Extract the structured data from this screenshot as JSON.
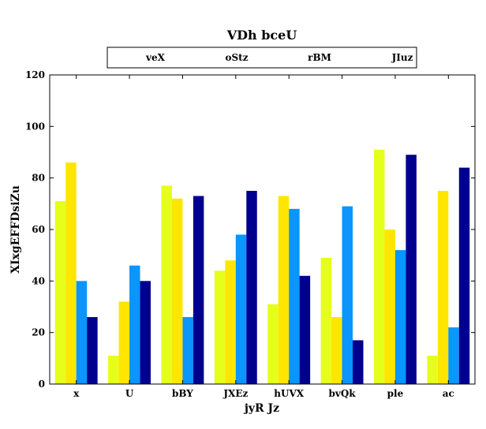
{
  "chart_data": {
    "type": "bar",
    "title": "VDh bceU",
    "xlabel": "jyR Jz",
    "ylabel": "XIxgEFFDsiZu",
    "categories": [
      "x",
      "U",
      "bBY",
      "JXEz",
      "hUVX",
      "bvQk",
      "ple",
      "ac"
    ],
    "ylim": [
      0,
      120
    ],
    "yticks": [
      0,
      20,
      40,
      60,
      80,
      100,
      120
    ],
    "grid": false,
    "legend_position": "top",
    "series": [
      {
        "name": "veX",
        "color": "#e6ff1a",
        "values": [
          71,
          11,
          77,
          44,
          31,
          49,
          91,
          11
        ]
      },
      {
        "name": "oStz",
        "color": "#ffe600",
        "values": [
          86,
          32,
          72,
          48,
          73,
          26,
          60,
          75
        ]
      },
      {
        "name": "rBM",
        "color": "#0a95ff",
        "values": [
          40,
          46,
          26,
          58,
          68,
          69,
          52,
          22
        ]
      },
      {
        "name": "JIuz",
        "color": "#00008f",
        "values": [
          26,
          40,
          73,
          75,
          42,
          17,
          89,
          84
        ]
      }
    ]
  }
}
